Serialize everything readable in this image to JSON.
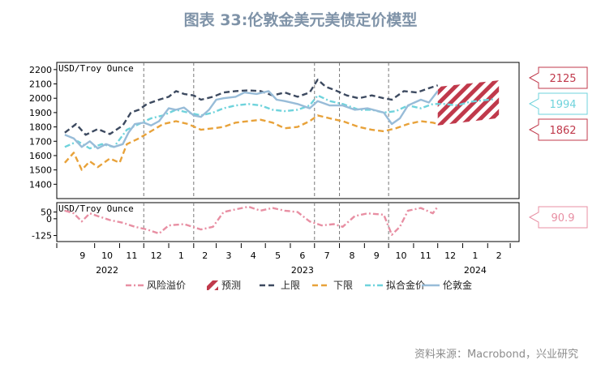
{
  "title": "图表 33:伦敦金美元美债定价模型",
  "source": "资料来源：Macrobond，兴业研究",
  "chart_data": {
    "type": "line",
    "x_ticks": [
      {
        "label": "9",
        "date": "2021-09"
      },
      {
        "label": "10",
        "date": "2021-10"
      },
      {
        "label": "11",
        "date": "2021-11"
      },
      {
        "label": "12",
        "date": "2021-12"
      },
      {
        "label": "1",
        "date": "2022-01"
      },
      {
        "label": "2",
        "date": "2022-02"
      },
      {
        "label": "3",
        "date": "2022-03"
      },
      {
        "label": "4",
        "date": "2022-04"
      },
      {
        "label": "5",
        "date": "2022-05"
      },
      {
        "label": "6",
        "date": "2022-06"
      },
      {
        "label": "7",
        "date": "2022-07"
      },
      {
        "label": "8",
        "date": "2022-08"
      },
      {
        "label": "9",
        "date": "2022-09"
      },
      {
        "label": "10",
        "date": "2022-10"
      },
      {
        "label": "11",
        "date": "2022-11"
      },
      {
        "label": "12",
        "date": "2022-12"
      },
      {
        "label": "1",
        "date": "2023-01"
      },
      {
        "label": "2",
        "date": "2023-02"
      }
    ],
    "year_labels": [
      {
        "label": "2022",
        "date": "2021-10"
      },
      {
        "label": "2023",
        "date": "2022-06"
      },
      {
        "label": "2024",
        "date": "2023-01"
      }
    ],
    "vlines": [
      "2021-12",
      "2022-02",
      "2022-07",
      "2022-08",
      "2022-10"
    ],
    "upper": {
      "ylabel": "USD/Troy Ounce",
      "ylim": [
        1300,
        2250
      ],
      "yticks": [
        1400,
        1500,
        1600,
        1700,
        1800,
        1900,
        2000,
        2100,
        2200
      ],
      "series": [
        {
          "name": "上限",
          "color": "#3d4a60",
          "points": [
            [
              "2021-08-25",
              1760
            ],
            [
              "2021-09-08",
              1820
            ],
            [
              "2021-09-20",
              1745
            ],
            [
              "2021-10-05",
              1785
            ],
            [
              "2021-10-20",
              1750
            ],
            [
              "2021-11-05",
              1810
            ],
            [
              "2021-11-15",
              1900
            ],
            [
              "2021-11-25",
              1920
            ],
            [
              "2021-12-05",
              1960
            ],
            [
              "2021-12-20",
              1990
            ],
            [
              "2022-01-01",
              2010
            ],
            [
              "2022-01-10",
              2050
            ],
            [
              "2022-01-20",
              2030
            ],
            [
              "2022-02-01",
              2020
            ],
            [
              "2022-02-10",
              1990
            ],
            [
              "2022-02-25",
              2010
            ],
            [
              "2022-03-10",
              2040
            ],
            [
              "2022-03-25",
              2050
            ],
            [
              "2022-04-10",
              2055
            ],
            [
              "2022-04-25",
              2050
            ],
            [
              "2022-05-10",
              2020
            ],
            [
              "2022-05-25",
              2040
            ],
            [
              "2022-06-10",
              2010
            ],
            [
              "2022-06-25",
              2040
            ],
            [
              "2022-07-05",
              2130
            ],
            [
              "2022-07-15",
              2080
            ],
            [
              "2022-07-25",
              2060
            ],
            [
              "2022-08-10",
              2020
            ],
            [
              "2022-08-25",
              2000
            ],
            [
              "2022-09-10",
              2020
            ],
            [
              "2022-09-25",
              2000
            ],
            [
              "2022-10-05",
              1990
            ],
            [
              "2022-10-20",
              2050
            ],
            [
              "2022-11-05",
              2040
            ],
            [
              "2022-11-20",
              2070
            ],
            [
              "2022-12-01",
              2090
            ]
          ]
        },
        {
          "name": "下限",
          "color": "#e8a23a",
          "points": [
            [
              "2021-08-25",
              1550
            ],
            [
              "2021-09-05",
              1620
            ],
            [
              "2021-09-15",
              1500
            ],
            [
              "2021-09-25",
              1560
            ],
            [
              "2021-10-05",
              1520
            ],
            [
              "2021-10-20",
              1580
            ],
            [
              "2021-11-01",
              1550
            ],
            [
              "2021-11-10",
              1680
            ],
            [
              "2021-11-25",
              1720
            ],
            [
              "2021-12-10",
              1770
            ],
            [
              "2021-12-25",
              1820
            ],
            [
              "2022-01-10",
              1840
            ],
            [
              "2022-01-25",
              1820
            ],
            [
              "2022-02-10",
              1780
            ],
            [
              "2022-02-25",
              1790
            ],
            [
              "2022-03-10",
              1800
            ],
            [
              "2022-03-25",
              1830
            ],
            [
              "2022-04-10",
              1840
            ],
            [
              "2022-04-25",
              1850
            ],
            [
              "2022-05-10",
              1830
            ],
            [
              "2022-05-25",
              1790
            ],
            [
              "2022-06-10",
              1800
            ],
            [
              "2022-06-25",
              1840
            ],
            [
              "2022-07-05",
              1880
            ],
            [
              "2022-07-20",
              1860
            ],
            [
              "2022-08-05",
              1840
            ],
            [
              "2022-08-25",
              1800
            ],
            [
              "2022-09-10",
              1780
            ],
            [
              "2022-09-25",
              1770
            ],
            [
              "2022-10-10",
              1790
            ],
            [
              "2022-10-25",
              1820
            ],
            [
              "2022-11-10",
              1840
            ],
            [
              "2022-11-25",
              1830
            ],
            [
              "2022-12-01",
              1820
            ]
          ]
        },
        {
          "name": "拟合金价",
          "color": "#6fd3dc",
          "points": [
            [
              "2021-08-25",
              1660
            ],
            [
              "2021-09-10",
              1700
            ],
            [
              "2021-09-25",
              1650
            ],
            [
              "2021-10-10",
              1680
            ],
            [
              "2021-10-25",
              1660
            ],
            [
              "2021-11-10",
              1780
            ],
            [
              "2021-11-25",
              1820
            ],
            [
              "2021-12-10",
              1860
            ],
            [
              "2021-12-25",
              1880
            ],
            [
              "2022-01-10",
              1920
            ],
            [
              "2022-01-25",
              1900
            ],
            [
              "2022-02-10",
              1880
            ],
            [
              "2022-02-25",
              1900
            ],
            [
              "2022-03-10",
              1930
            ],
            [
              "2022-03-25",
              1950
            ],
            [
              "2022-04-10",
              1960
            ],
            [
              "2022-04-25",
              1950
            ],
            [
              "2022-05-10",
              1920
            ],
            [
              "2022-05-25",
              1910
            ],
            [
              "2022-06-10",
              1920
            ],
            [
              "2022-06-25",
              1950
            ],
            [
              "2022-07-05",
              2020
            ],
            [
              "2022-07-20",
              1980
            ],
            [
              "2022-08-05",
              1960
            ],
            [
              "2022-08-25",
              1920
            ],
            [
              "2022-09-10",
              1920
            ],
            [
              "2022-09-25",
              1900
            ],
            [
              "2022-10-10",
              1910
            ],
            [
              "2022-10-25",
              1950
            ],
            [
              "2022-11-10",
              1930
            ],
            [
              "2022-11-25",
              1960
            ],
            [
              "2022-12-10",
              1960
            ],
            [
              "2022-12-25",
              1950
            ],
            [
              "2023-01-10",
              1975
            ],
            [
              "2023-01-25",
              1985
            ],
            [
              "2023-02-10",
              1994
            ]
          ]
        },
        {
          "name": "伦敦金",
          "color": "#98bcd8",
          "points": [
            [
              "2021-08-25",
              1745
            ],
            [
              "2021-09-05",
              1720
            ],
            [
              "2021-09-15",
              1660
            ],
            [
              "2021-09-25",
              1700
            ],
            [
              "2021-10-05",
              1650
            ],
            [
              "2021-10-15",
              1680
            ],
            [
              "2021-10-25",
              1660
            ],
            [
              "2021-11-05",
              1680
            ],
            [
              "2021-11-12",
              1760
            ],
            [
              "2021-11-20",
              1820
            ],
            [
              "2021-12-01",
              1830
            ],
            [
              "2021-12-10",
              1810
            ],
            [
              "2021-12-20",
              1840
            ],
            [
              "2022-01-01",
              1930
            ],
            [
              "2022-01-10",
              1920
            ],
            [
              "2022-01-20",
              1935
            ],
            [
              "2022-02-01",
              1880
            ],
            [
              "2022-02-10",
              1870
            ],
            [
              "2022-02-20",
              1920
            ],
            [
              "2022-03-01",
              1990
            ],
            [
              "2022-03-10",
              2000
            ],
            [
              "2022-03-25",
              2010
            ],
            [
              "2022-04-05",
              2040
            ],
            [
              "2022-04-20",
              2030
            ],
            [
              "2022-05-05",
              2050
            ],
            [
              "2022-05-15",
              1990
            ],
            [
              "2022-05-25",
              1980
            ],
            [
              "2022-06-10",
              1960
            ],
            [
              "2022-06-25",
              1930
            ],
            [
              "2022-07-05",
              1980
            ],
            [
              "2022-07-20",
              1950
            ],
            [
              "2022-08-05",
              1950
            ],
            [
              "2022-08-20",
              1920
            ],
            [
              "2022-09-05",
              1930
            ],
            [
              "2022-09-25",
              1900
            ],
            [
              "2022-10-05",
              1820
            ],
            [
              "2022-10-15",
              1860
            ],
            [
              "2022-10-25",
              1950
            ],
            [
              "2022-11-10",
              1990
            ],
            [
              "2022-11-20",
              1970
            ],
            [
              "2022-12-01",
              2050
            ]
          ]
        }
      ],
      "forecast": {
        "name": "预测",
        "color": "#c0394b",
        "start": "2022-12-01",
        "end": "2023-02-15",
        "top_start": 2080,
        "top_end": 2125,
        "bottom_start": 1810,
        "bottom_end": 1862
      },
      "callouts": [
        {
          "label": "2125",
          "value": 2125,
          "color": "#c0394b"
        },
        {
          "label": "1994",
          "value": 1994,
          "color": "#6fd3dc"
        },
        {
          "label": "1862",
          "value": 1862,
          "color": "#c0394b"
        }
      ]
    },
    "lower": {
      "ylabel": "USD/Troy Ounce",
      "ylim": [
        -170,
        120
      ],
      "yticks": [
        -125,
        0,
        50
      ],
      "series": [
        {
          "name": "风险溢价",
          "color": "#e88fa3",
          "points": [
            [
              "2021-08-25",
              60
            ],
            [
              "2021-09-05",
              40
            ],
            [
              "2021-09-15",
              -20
            ],
            [
              "2021-09-25",
              40
            ],
            [
              "2021-10-05",
              20
            ],
            [
              "2021-10-20",
              -10
            ],
            [
              "2021-11-05",
              -30
            ],
            [
              "2021-11-20",
              -60
            ],
            [
              "2021-12-05",
              -80
            ],
            [
              "2021-12-20",
              -110
            ],
            [
              "2022-01-01",
              -50
            ],
            [
              "2022-01-20",
              -40
            ],
            [
              "2022-02-10",
              -80
            ],
            [
              "2022-02-25",
              -60
            ],
            [
              "2022-03-10",
              50
            ],
            [
              "2022-03-25",
              70
            ],
            [
              "2022-04-10",
              90
            ],
            [
              "2022-04-25",
              60
            ],
            [
              "2022-05-10",
              80
            ],
            [
              "2022-05-25",
              60
            ],
            [
              "2022-06-10",
              50
            ],
            [
              "2022-06-25",
              -20
            ],
            [
              "2022-07-10",
              -50
            ],
            [
              "2022-07-25",
              -40
            ],
            [
              "2022-08-05",
              -60
            ],
            [
              "2022-08-20",
              20
            ],
            [
              "2022-09-05",
              40
            ],
            [
              "2022-09-25",
              30
            ],
            [
              "2022-10-05",
              -120
            ],
            [
              "2022-10-15",
              -60
            ],
            [
              "2022-10-25",
              60
            ],
            [
              "2022-11-10",
              80
            ],
            [
              "2022-11-25",
              40
            ],
            [
              "2022-12-01",
              90.9
            ]
          ]
        }
      ],
      "callouts": [
        {
          "label": "90.9",
          "value": 90.9,
          "color": "#e88fa3"
        }
      ]
    },
    "legend": [
      {
        "name": "风险溢价",
        "color": "#e88fa3",
        "style": "dashdot"
      },
      {
        "name": "预测",
        "color": "#c0394b",
        "style": "hatch"
      },
      {
        "name": "上限",
        "color": "#3d4a60",
        "style": "dashed"
      },
      {
        "name": "下限",
        "color": "#e8a23a",
        "style": "dashed"
      },
      {
        "name": "拟合金价",
        "color": "#6fd3dc",
        "style": "dashdot"
      },
      {
        "name": "伦敦金",
        "color": "#98bcd8",
        "style": "solid"
      }
    ]
  }
}
